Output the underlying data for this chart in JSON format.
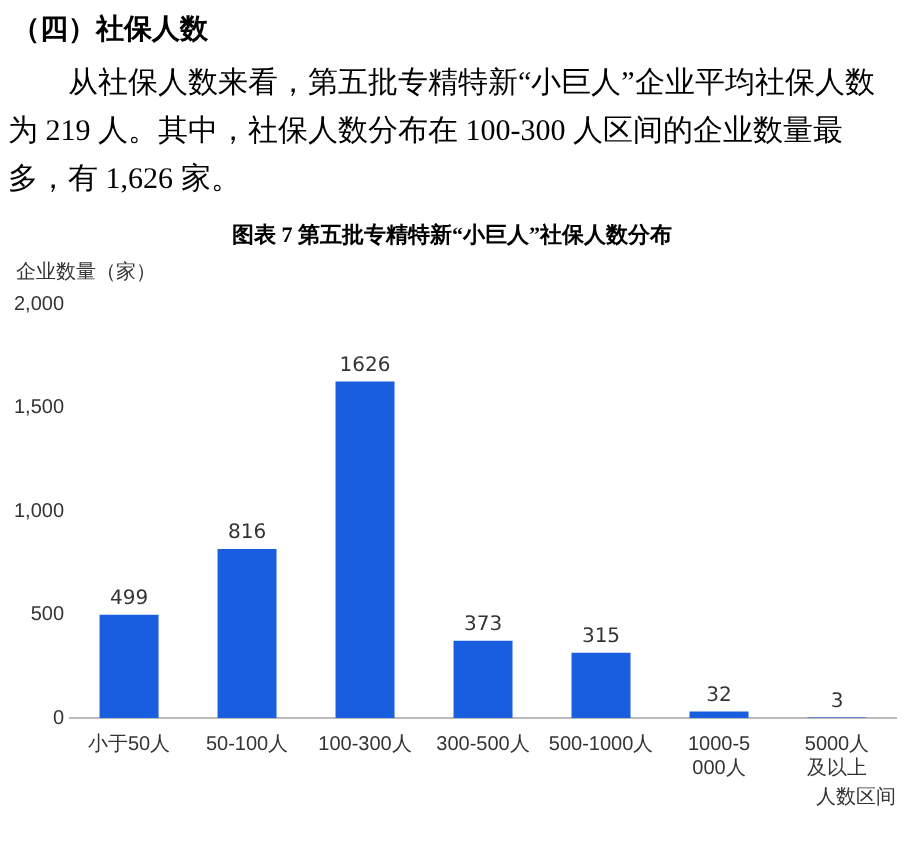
{
  "chart_data": {
    "type": "bar",
    "title": "图表 7 第五批专精特新“小巨人”社保人数分布",
    "annotations": [
      "（四）社保人数",
      "从社保人数来看，第五批专精特新“小巨人”企业平均社保人数为 219 人。其中，社保人数分布在 100-300 人区间的企业数量最多，有 1,626 家。"
    ],
    "ylabel": "企业数量（家）",
    "xlabel": "人数区间",
    "categories": [
      "小于50人",
      "50-100人",
      "100-300人",
      "300-500人",
      "500-1000人",
      "1000-5000人",
      "5000人及以上"
    ],
    "values": [
      499,
      816,
      1626,
      373,
      315,
      32,
      3
    ],
    "color": "#1a5ee0",
    "ylim": [
      0,
      2000
    ],
    "yticks": [
      0,
      500,
      {
        "value": 1000,
        "label": "1,000"
      },
      {
        "value": 1500,
        "label": "1,500"
      },
      {
        "value": 2000,
        "label": "2,000"
      }
    ],
    "grid": false,
    "legend": false,
    "data_labels": true
  }
}
